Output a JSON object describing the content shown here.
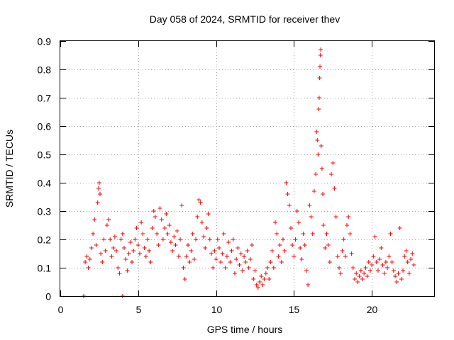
{
  "chart_data": {
    "type": "scatter",
    "title": "Day 058 of 2024, SRMTID for receiver thev",
    "xlabel": "GPS time / hours",
    "ylabel": "SRMTID / TECUs",
    "xlim": [
      0,
      24
    ],
    "ylim": [
      0,
      0.9
    ],
    "x_ticks": [
      0,
      5,
      10,
      15,
      20
    ],
    "x_tick_labels": [
      "0",
      "5",
      "10",
      "15",
      "20"
    ],
    "y_ticks": [
      0,
      0.1,
      0.2,
      0.3,
      0.4,
      0.5,
      0.6,
      0.7,
      0.8,
      0.9
    ],
    "y_tick_labels": [
      "0",
      "0.1",
      "0.2",
      "0.3",
      "0.4",
      "0.5",
      "0.6",
      "0.7",
      "0.8",
      "0.9"
    ],
    "grid": true,
    "series": [
      {
        "name": "SRMTID",
        "marker": "plus",
        "color": "#ff0000",
        "points": [
          [
            1.5,
            0.0
          ],
          [
            4.0,
            0.0
          ],
          [
            1.6,
            0.12
          ],
          [
            1.7,
            0.14
          ],
          [
            1.8,
            0.1
          ],
          [
            1.9,
            0.13
          ],
          [
            2.0,
            0.17
          ],
          [
            2.1,
            0.22
          ],
          [
            2.2,
            0.27
          ],
          [
            2.3,
            0.18
          ],
          [
            2.4,
            0.33
          ],
          [
            2.45,
            0.38
          ],
          [
            2.5,
            0.4
          ],
          [
            2.55,
            0.36
          ],
          [
            2.6,
            0.15
          ],
          [
            2.7,
            0.12
          ],
          [
            2.8,
            0.2
          ],
          [
            2.9,
            0.16
          ],
          [
            3.0,
            0.25
          ],
          [
            3.1,
            0.27
          ],
          [
            3.2,
            0.2
          ],
          [
            3.3,
            0.14
          ],
          [
            3.4,
            0.17
          ],
          [
            3.5,
            0.21
          ],
          [
            3.6,
            0.16
          ],
          [
            3.7,
            0.1
          ],
          [
            3.8,
            0.08
          ],
          [
            3.9,
            0.2
          ],
          [
            4.0,
            0.22
          ],
          [
            4.1,
            0.17
          ],
          [
            4.2,
            0.13
          ],
          [
            4.3,
            0.09
          ],
          [
            4.4,
            0.15
          ],
          [
            4.5,
            0.19
          ],
          [
            4.6,
            0.12
          ],
          [
            4.7,
            0.16
          ],
          [
            4.8,
            0.2
          ],
          [
            4.9,
            0.24
          ],
          [
            5.0,
            0.18
          ],
          [
            5.1,
            0.15
          ],
          [
            5.2,
            0.26
          ],
          [
            5.3,
            0.22
          ],
          [
            5.4,
            0.17
          ],
          [
            5.5,
            0.14
          ],
          [
            5.6,
            0.2
          ],
          [
            5.7,
            0.16
          ],
          [
            5.8,
            0.12
          ],
          [
            5.9,
            0.24
          ],
          [
            6.0,
            0.3
          ],
          [
            6.1,
            0.28
          ],
          [
            6.2,
            0.22
          ],
          [
            6.3,
            0.18
          ],
          [
            6.4,
            0.31
          ],
          [
            6.5,
            0.27
          ],
          [
            6.6,
            0.2
          ],
          [
            6.7,
            0.24
          ],
          [
            6.8,
            0.29
          ],
          [
            6.9,
            0.22
          ],
          [
            7.0,
            0.25
          ],
          [
            7.1,
            0.19
          ],
          [
            7.2,
            0.16
          ],
          [
            7.3,
            0.21
          ],
          [
            7.4,
            0.18
          ],
          [
            7.5,
            0.23
          ],
          [
            7.6,
            0.14
          ],
          [
            7.7,
            0.2
          ],
          [
            7.8,
            0.32
          ],
          [
            7.9,
            0.1
          ],
          [
            8.0,
            0.06
          ],
          [
            8.1,
            0.14
          ],
          [
            8.2,
            0.18
          ],
          [
            8.3,
            0.12
          ],
          [
            8.4,
            0.16
          ],
          [
            8.5,
            0.22
          ],
          [
            8.6,
            0.13
          ],
          [
            8.7,
            0.2
          ],
          [
            8.8,
            0.28
          ],
          [
            8.9,
            0.34
          ],
          [
            9.0,
            0.33
          ],
          [
            9.1,
            0.26
          ],
          [
            9.2,
            0.21
          ],
          [
            9.3,
            0.17
          ],
          [
            9.4,
            0.24
          ],
          [
            9.5,
            0.29
          ],
          [
            9.6,
            0.2
          ],
          [
            9.7,
            0.15
          ],
          [
            9.8,
            0.1
          ],
          [
            9.9,
            0.16
          ],
          [
            10.0,
            0.13
          ],
          [
            10.1,
            0.2
          ],
          [
            10.2,
            0.17
          ],
          [
            10.3,
            0.12
          ],
          [
            10.4,
            0.15
          ],
          [
            10.5,
            0.22
          ],
          [
            10.6,
            0.1
          ],
          [
            10.7,
            0.14
          ],
          [
            10.8,
            0.19
          ],
          [
            10.9,
            0.12
          ],
          [
            11.0,
            0.16
          ],
          [
            11.1,
            0.2
          ],
          [
            11.2,
            0.08
          ],
          [
            11.3,
            0.13
          ],
          [
            11.4,
            0.17
          ],
          [
            11.5,
            0.11
          ],
          [
            11.6,
            0.15
          ],
          [
            11.7,
            0.09
          ],
          [
            11.8,
            0.14
          ],
          [
            11.9,
            0.12
          ],
          [
            12.0,
            0.16
          ],
          [
            12.1,
            0.1
          ],
          [
            12.2,
            0.13
          ],
          [
            12.3,
            0.18
          ],
          [
            12.4,
            0.06
          ],
          [
            12.5,
            0.09
          ],
          [
            12.6,
            0.04
          ],
          [
            12.7,
            0.03
          ],
          [
            12.8,
            0.05
          ],
          [
            12.9,
            0.07
          ],
          [
            13.0,
            0.04
          ],
          [
            13.1,
            0.06
          ],
          [
            13.2,
            0.08
          ],
          [
            13.3,
            0.1
          ],
          [
            13.4,
            0.06
          ],
          [
            13.5,
            0.12
          ],
          [
            13.6,
            0.16
          ],
          [
            13.7,
            0.1
          ],
          [
            13.8,
            0.26
          ],
          [
            13.9,
            0.22
          ],
          [
            14.0,
            0.14
          ],
          [
            14.1,
            0.18
          ],
          [
            14.2,
            0.12
          ],
          [
            14.3,
            0.2
          ],
          [
            14.4,
            0.16
          ],
          [
            14.5,
            0.4
          ],
          [
            14.6,
            0.36
          ],
          [
            14.7,
            0.32
          ],
          [
            14.8,
            0.24
          ],
          [
            14.9,
            0.18
          ],
          [
            15.0,
            0.14
          ],
          [
            15.1,
            0.2
          ],
          [
            15.2,
            0.3
          ],
          [
            15.3,
            0.26
          ],
          [
            15.4,
            0.17
          ],
          [
            15.5,
            0.13
          ],
          [
            15.6,
            0.22
          ],
          [
            15.7,
            0.18
          ],
          [
            15.8,
            0.09
          ],
          [
            15.9,
            0.04
          ],
          [
            16.0,
            0.32
          ],
          [
            16.1,
            0.28
          ],
          [
            16.2,
            0.22
          ],
          [
            16.3,
            0.37
          ],
          [
            16.4,
            0.43
          ],
          [
            16.45,
            0.58
          ],
          [
            16.5,
            0.55
          ],
          [
            16.55,
            0.5
          ],
          [
            16.6,
            0.66
          ],
          [
            16.62,
            0.7
          ],
          [
            16.65,
            0.77
          ],
          [
            16.67,
            0.81
          ],
          [
            16.7,
            0.85
          ],
          [
            16.72,
            0.87
          ],
          [
            16.75,
            0.53
          ],
          [
            16.8,
            0.45
          ],
          [
            16.85,
            0.36
          ],
          [
            16.9,
            0.25
          ],
          [
            17.0,
            0.17
          ],
          [
            17.1,
            0.22
          ],
          [
            17.2,
            0.18
          ],
          [
            17.3,
            0.12
          ],
          [
            17.4,
            0.43
          ],
          [
            17.5,
            0.47
          ],
          [
            17.6,
            0.38
          ],
          [
            17.7,
            0.28
          ],
          [
            17.8,
            0.14
          ],
          [
            17.9,
            0.1
          ],
          [
            18.0,
            0.08
          ],
          [
            18.1,
            0.16
          ],
          [
            18.2,
            0.2
          ],
          [
            18.3,
            0.14
          ],
          [
            18.4,
            0.25
          ],
          [
            18.5,
            0.28
          ],
          [
            18.6,
            0.22
          ],
          [
            18.7,
            0.15
          ],
          [
            18.8,
            0.1
          ],
          [
            18.9,
            0.06
          ],
          [
            19.0,
            0.08
          ],
          [
            19.1,
            0.05
          ],
          [
            19.2,
            0.07
          ],
          [
            19.3,
            0.09
          ],
          [
            19.4,
            0.06
          ],
          [
            19.5,
            0.08
          ],
          [
            19.6,
            0.1
          ],
          [
            19.7,
            0.07
          ],
          [
            19.8,
            0.12
          ],
          [
            19.9,
            0.09
          ],
          [
            20.0,
            0.11
          ],
          [
            20.1,
            0.14
          ],
          [
            20.2,
            0.21
          ],
          [
            20.3,
            0.12
          ],
          [
            20.4,
            0.09
          ],
          [
            20.5,
            0.13
          ],
          [
            20.6,
            0.17
          ],
          [
            20.7,
            0.11
          ],
          [
            20.8,
            0.08
          ],
          [
            20.9,
            0.12
          ],
          [
            21.0,
            0.1
          ],
          [
            21.1,
            0.14
          ],
          [
            21.2,
            0.22
          ],
          [
            21.3,
            0.12
          ],
          [
            21.4,
            0.09
          ],
          [
            21.5,
            0.07
          ],
          [
            21.6,
            0.05
          ],
          [
            21.7,
            0.08
          ],
          [
            21.8,
            0.24
          ],
          [
            21.9,
            0.06
          ],
          [
            22.0,
            0.09
          ],
          [
            22.1,
            0.14
          ],
          [
            22.2,
            0.16
          ],
          [
            22.3,
            0.12
          ],
          [
            22.4,
            0.08
          ],
          [
            22.5,
            0.13
          ],
          [
            22.6,
            0.15
          ],
          [
            22.7,
            0.11
          ]
        ]
      }
    ]
  }
}
